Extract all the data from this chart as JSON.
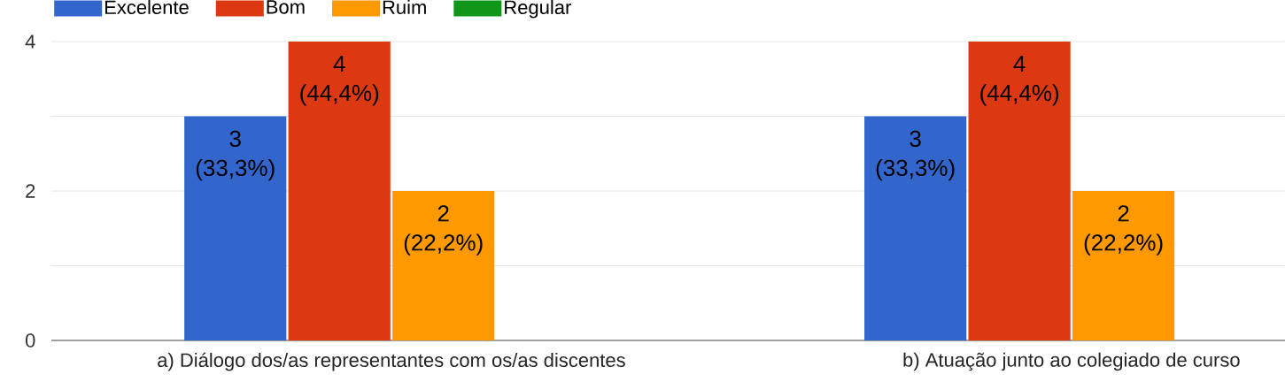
{
  "chart_data": {
    "type": "bar",
    "categories": [
      "a) Diálogo dos/as representantes com os/as discentes",
      "b) Atuação junto ao colegiado de curso"
    ],
    "series": [
      {
        "name": "Excelente",
        "color": "#3366cc",
        "values": [
          3,
          3
        ],
        "value_labels": [
          "3 (33,3%)",
          "3 (33,3%)"
        ]
      },
      {
        "name": "Bom",
        "color": "#dc3912",
        "values": [
          4,
          4
        ],
        "value_labels": [
          "4 (44,4%)",
          "4 (44,4%)"
        ]
      },
      {
        "name": "Ruim",
        "color": "#ff9900",
        "values": [
          2,
          2
        ],
        "value_labels": [
          "2 (22,2%)",
          "2 (22,2%)"
        ]
      },
      {
        "name": "Regular",
        "color": "#109618",
        "values": [
          0,
          0
        ],
        "value_labels": [
          null,
          null
        ]
      }
    ],
    "ylim": [
      0,
      4
    ],
    "yticks": [
      0,
      {
        "value": 1,
        "label": null
      },
      2,
      {
        "value": 3,
        "label": null
      },
      4
    ],
    "grid": "y",
    "legend": "top left"
  }
}
